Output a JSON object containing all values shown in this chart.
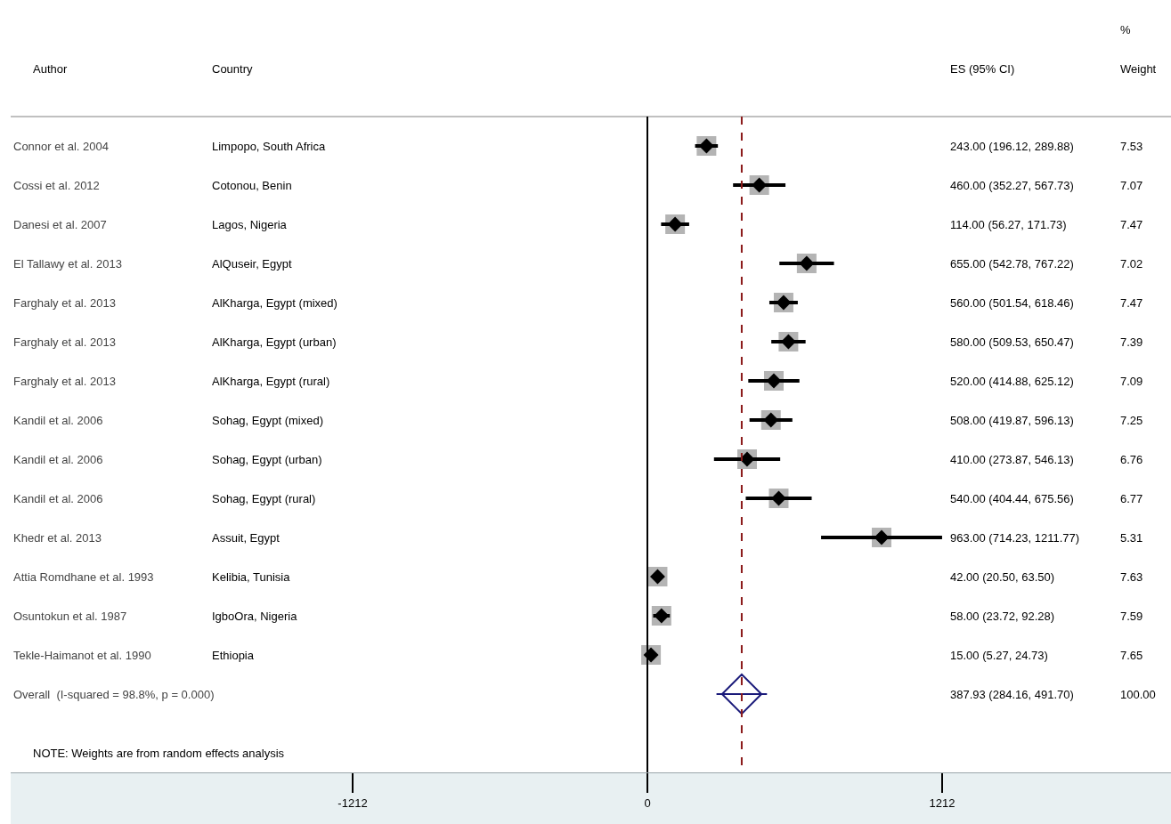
{
  "chart_data": {
    "type": "scatter",
    "orientation": "horizontal",
    "categories": [
      "Connor et al. 2004",
      "Cossi et al. 2012",
      "Danesi et al. 2007",
      "El Tallawy et al. 2013",
      "Farghaly et al. 2013",
      "Farghaly et al. 2013",
      "Farghaly et al. 2013",
      "Kandil et al. 2006",
      "Kandil et al. 2006",
      "Kandil et al. 2006",
      "Khedr et al. 2013",
      "Attia Romdhane et al. 1993",
      "Osuntokun et al. 1987",
      "Tekle-Haimanot et al. 1990",
      "Overall  (I-squared = 98.8%, p = 0.000)"
    ],
    "series": [
      {
        "color": "#000000",
        "marker": "diamond",
        "values": [
          243,
          460,
          114,
          655,
          560,
          580,
          520,
          508,
          410,
          540,
          963,
          42,
          58,
          15,
          null
        ],
        "errors": [
          [
            196.12,
            289.88
          ],
          [
            352.27,
            567.73
          ],
          [
            56.27,
            171.73
          ],
          [
            542.78,
            767.22
          ],
          [
            501.54,
            618.46
          ],
          [
            509.53,
            650.47
          ],
          [
            414.88,
            625.12
          ],
          [
            419.87,
            596.13
          ],
          [
            273.87,
            546.13
          ],
          [
            404.44,
            675.56
          ],
          [
            714.23,
            1211.77
          ],
          [
            20.5,
            63.5
          ],
          [
            23.72,
            92.28
          ],
          [
            5.27,
            24.73
          ],
          null
        ]
      },
      {
        "color": "#1a1a7a",
        "marker": "diamond",
        "values": [
          null,
          null,
          null,
          null,
          null,
          null,
          null,
          null,
          null,
          null,
          null,
          null,
          null,
          null,
          387.93
        ],
        "errors": [
          null,
          null,
          null,
          null,
          null,
          null,
          null,
          null,
          null,
          null,
          null,
          null,
          null,
          null,
          [
            284.16,
            491.7
          ]
        ]
      }
    ],
    "xlim": [
      -2618,
      2153
    ],
    "xticks": [
      -1212,
      0,
      1212
    ],
    "ref_lines": [
      {
        "axis": "x",
        "value": 0,
        "color": "#000000",
        "line_style": "solid"
      },
      {
        "axis": "x",
        "value": 387.93,
        "color": "#8b1a1a",
        "line_style": "dashed"
      }
    ],
    "grid": false,
    "annotations": [
      "%",
      "Author",
      "Country",
      "ES (95% CI)",
      "Weight",
      "Limpopo, South Africa",
      "Cotonou, Benin",
      "Lagos, Nigeria",
      "AlQuseir, Egypt",
      "AlKharga, Egypt (mixed)",
      "AlKharga, Egypt (urban)",
      "AlKharga, Egypt (rural)",
      "Sohag, Egypt (mixed)",
      "Sohag, Egypt (urban)",
      "Sohag, Egypt (rural)",
      "Assuit, Egypt",
      "Kelibia, Tunisia",
      "IgboOra, Nigeria",
      "Ethiopia",
      "243.00 (196.12, 289.88)",
      "460.00 (352.27, 567.73)",
      "114.00 (56.27, 171.73)",
      "655.00 (542.78, 767.22)",
      "560.00 (501.54, 618.46)",
      "580.00 (509.53, 650.47)",
      "520.00 (414.88, 625.12)",
      "508.00 (419.87, 596.13)",
      "410.00 (273.87, 546.13)",
      "540.00 (404.44, 675.56)",
      "963.00 (714.23, 1211.77)",
      "42.00 (20.50, 63.50)",
      "58.00 (23.72, 92.28)",
      "15.00 (5.27, 24.73)",
      "387.93 (284.16, 491.70)",
      "7.53",
      "7.07",
      "7.47",
      "7.02",
      "7.47",
      "7.39",
      "7.09",
      "7.25",
      "6.76",
      "6.77",
      "5.31",
      "7.63",
      "7.59",
      "7.65",
      "100.00",
      "NOTE: Weights are from random effects analysis"
    ]
  }
}
